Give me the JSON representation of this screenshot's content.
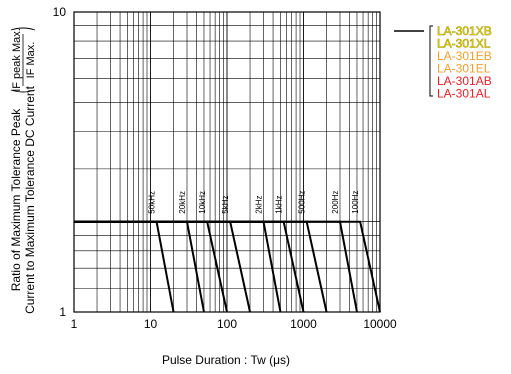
{
  "chart_data": {
    "type": "line",
    "xscale": "log",
    "yscale": "log",
    "xlim": [
      1,
      10000
    ],
    "ylim": [
      1,
      10
    ],
    "grid": true,
    "xlabel": "Pulse Duration : Tw (μs)",
    "ylabel": {
      "line1": "Ratio of Maximum Tolerance Peak",
      "line2": "Current to Maximum Tolerance DC Current",
      "ratio_top": "IF peak Max.",
      "ratio_bottom": "IF Max."
    },
    "x_ticks": [
      {
        "value": 1,
        "label": "1"
      },
      {
        "value": 10,
        "label": "10"
      },
      {
        "value": 100,
        "label": "100"
      },
      {
        "value": 1000,
        "label": "1000"
      },
      {
        "value": 10000,
        "label": "10000"
      }
    ],
    "y_ticks": [
      {
        "value": 1,
        "label": "1"
      },
      {
        "value": 10,
        "label": "10"
      }
    ],
    "plateau_y": 2,
    "series": [
      {
        "name": "50kHz",
        "x": [
          1,
          12,
          20
        ],
        "y": [
          2,
          2,
          1
        ]
      },
      {
        "name": "20kHz",
        "x": [
          1,
          30,
          50
        ],
        "y": [
          2,
          2,
          1
        ]
      },
      {
        "name": "10kHz",
        "x": [
          1,
          55,
          100
        ],
        "y": [
          2,
          2,
          1
        ]
      },
      {
        "name": "5kHz",
        "x": [
          1,
          110,
          200
        ],
        "y": [
          2,
          2,
          1
        ]
      },
      {
        "name": "2kHz",
        "x": [
          1,
          300,
          500
        ],
        "y": [
          2,
          2,
          1
        ]
      },
      {
        "name": "1kHz",
        "x": [
          1,
          550,
          1000
        ],
        "y": [
          2,
          2,
          1
        ]
      },
      {
        "name": "500Hz",
        "x": [
          1,
          1100,
          2000
        ],
        "y": [
          2,
          2,
          1
        ]
      },
      {
        "name": "200Hz",
        "x": [
          1,
          3000,
          5000
        ],
        "y": [
          2,
          2,
          1
        ]
      },
      {
        "name": "100Hz",
        "x": [
          1,
          5500,
          10000
        ],
        "y": [
          2,
          2,
          1
        ]
      }
    ],
    "legend": {
      "placement": "right",
      "entries": [
        {
          "label": "LA-301XB",
          "color": "#d4c400",
          "outline": "#8a7a00"
        },
        {
          "label": "LA-301XL",
          "color": "#d4c400",
          "outline": "#8a7a00"
        },
        {
          "label": "LA-301EB",
          "color": "#f0a030",
          "outline": ""
        },
        {
          "label": "LA-301EL",
          "color": "#f0a030",
          "outline": ""
        },
        {
          "label": "LA-301AB",
          "color": "#e8202a",
          "outline": ""
        },
        {
          "label": "LA-301AL",
          "color": "#e8202a",
          "outline": ""
        }
      ]
    }
  }
}
